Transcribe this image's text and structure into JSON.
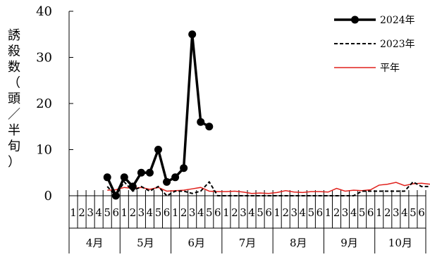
{
  "chart_data": {
    "type": "line",
    "ylabel": "誘殺数（頭／半旬）",
    "ylim": [
      0,
      40
    ],
    "yticks": [
      0,
      10,
      20,
      30,
      40
    ],
    "months": [
      "4月",
      "5月",
      "6月",
      "7月",
      "8月",
      "9月",
      "10月"
    ],
    "pentad_labels": [
      "1",
      "2",
      "3",
      "4",
      "5",
      "6"
    ],
    "legend_position": "top-right",
    "grid": false,
    "series": [
      {
        "name": "2024年",
        "style": "solid-marker",
        "color": "#000000",
        "start_index": 4,
        "values": [
          4,
          0,
          4,
          2,
          5,
          5,
          10,
          3,
          4,
          6,
          35,
          16,
          15
        ]
      },
      {
        "name": "2023年",
        "style": "dashed",
        "color": "#000000",
        "start_index": 4,
        "values": [
          2,
          0,
          3,
          1,
          2,
          1,
          2,
          0,
          1,
          1,
          0.5,
          1,
          3,
          0,
          0,
          0,
          0,
          0,
          0,
          0,
          0,
          0,
          0,
          0,
          0,
          0,
          0,
          0,
          0,
          0,
          1,
          1,
          1,
          1,
          1,
          1,
          3,
          2,
          2,
          2,
          4
        ]
      },
      {
        "name": "平年",
        "style": "solid",
        "color": "#e0201b",
        "start_index": 4,
        "values": [
          1.2,
          1.3,
          1.8,
          1.6,
          1.8,
          1.4,
          1.8,
          1,
          1.1,
          1.2,
          1.5,
          1.8,
          1,
          0.9,
          0.9,
          1,
          0.8,
          0.5,
          0.6,
          0.5,
          0.7,
          1.1,
          0.8,
          0.7,
          0.9,
          0.9,
          0.8,
          1.6,
          1,
          1.2,
          1.1,
          1.3,
          2.3,
          2.5,
          2.9,
          2.2,
          2.6,
          2.7,
          2.5
        ]
      }
    ]
  }
}
